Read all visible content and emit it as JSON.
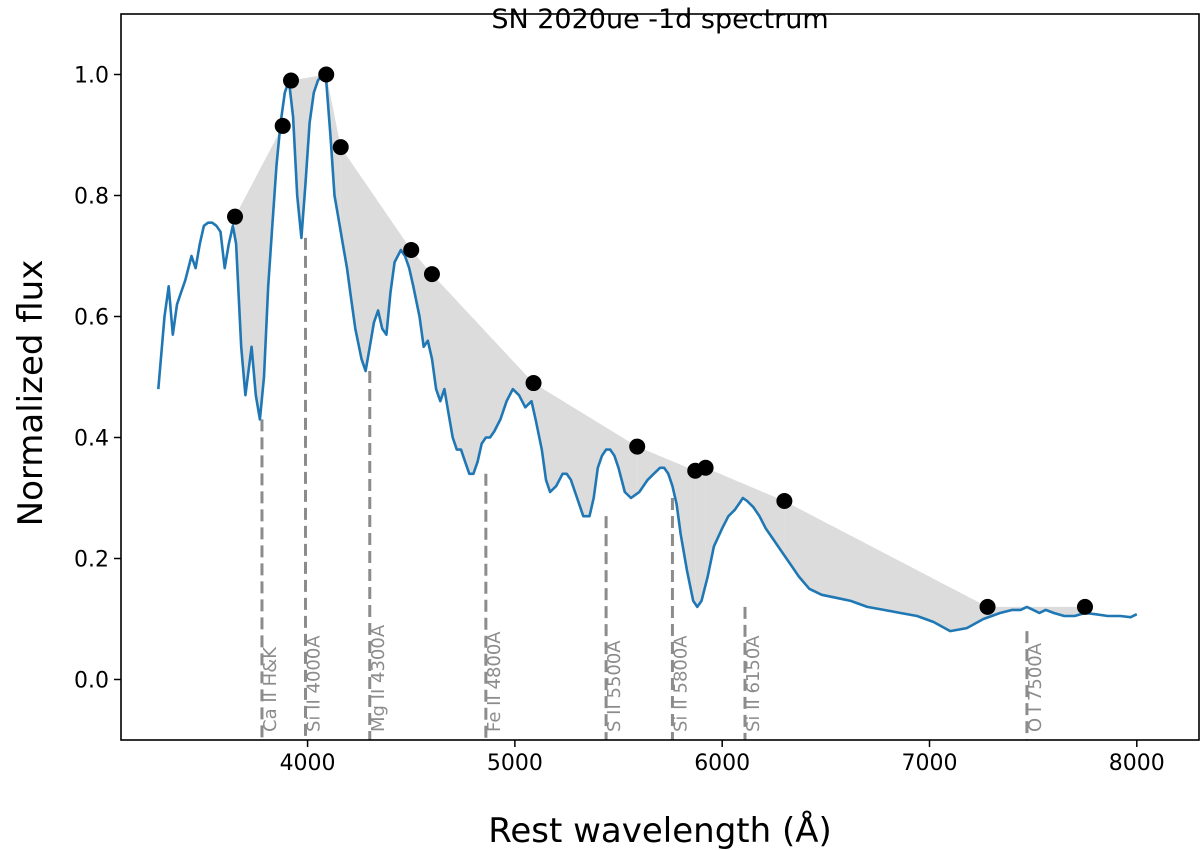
{
  "chart_data": {
    "type": "line",
    "title": "SN 2020ue -1d spectrum",
    "xlabel": "Rest wavelength (Å)",
    "ylabel": "Normalized flux",
    "xlim": [
      3100,
      8300
    ],
    "ylim": [
      -0.1,
      1.1
    ],
    "xticks": [
      4000,
      5000,
      6000,
      7000,
      8000
    ],
    "yticks": [
      0.0,
      0.2,
      0.4,
      0.6,
      0.8,
      1.0
    ],
    "ytick_labels": [
      "0.0",
      "0.2",
      "0.4",
      "0.6",
      "0.8",
      "1.0"
    ],
    "colors": {
      "spectrum": "#1f77b4",
      "fill": "#dcdcdc",
      "line_marker": "#8c8c8c",
      "points": "#000000"
    },
    "spectrum": {
      "name": "spectrum",
      "x": [
        3280,
        3310,
        3330,
        3350,
        3370,
        3390,
        3410,
        3440,
        3460,
        3480,
        3500,
        3520,
        3540,
        3560,
        3580,
        3600,
        3620,
        3640,
        3655,
        3680,
        3700,
        3730,
        3750,
        3770,
        3790,
        3810,
        3830,
        3850,
        3870,
        3890,
        3910,
        3930,
        3950,
        3970,
        3990,
        4010,
        4030,
        4050,
        4070,
        4090,
        4110,
        4130,
        4150,
        4170,
        4190,
        4210,
        4230,
        4260,
        4280,
        4300,
        4320,
        4340,
        4360,
        4380,
        4400,
        4420,
        4450,
        4470,
        4490,
        4510,
        4540,
        4560,
        4580,
        4600,
        4620,
        4640,
        4660,
        4680,
        4700,
        4720,
        4740,
        4760,
        4780,
        4800,
        4820,
        4840,
        4860,
        4880,
        4900,
        4930,
        4960,
        4990,
        5020,
        5050,
        5080,
        5100,
        5130,
        5150,
        5170,
        5200,
        5230,
        5250,
        5270,
        5300,
        5330,
        5360,
        5380,
        5400,
        5420,
        5440,
        5460,
        5480,
        5500,
        5530,
        5560,
        5600,
        5640,
        5670,
        5700,
        5720,
        5740,
        5760,
        5780,
        5800,
        5830,
        5860,
        5880,
        5900,
        5930,
        5960,
        6000,
        6030,
        6060,
        6080,
        6100,
        6120,
        6150,
        6180,
        6210,
        6250,
        6290,
        6330,
        6370,
        6420,
        6480,
        6550,
        6620,
        6700,
        6780,
        6860,
        6940,
        7020,
        7100,
        7180,
        7260,
        7340,
        7400,
        7440,
        7470,
        7500,
        7530,
        7560,
        7600,
        7650,
        7700,
        7750,
        7800,
        7860,
        7920,
        7970,
        8000
      ],
      "y": [
        0.48,
        0.6,
        0.65,
        0.57,
        0.62,
        0.64,
        0.66,
        0.7,
        0.68,
        0.72,
        0.75,
        0.755,
        0.755,
        0.75,
        0.74,
        0.68,
        0.72,
        0.75,
        0.72,
        0.55,
        0.47,
        0.55,
        0.47,
        0.43,
        0.5,
        0.65,
        0.75,
        0.85,
        0.92,
        0.97,
        0.99,
        0.93,
        0.8,
        0.73,
        0.82,
        0.92,
        0.97,
        0.99,
        1.0,
        0.99,
        0.9,
        0.8,
        0.76,
        0.72,
        0.68,
        0.63,
        0.58,
        0.53,
        0.51,
        0.55,
        0.59,
        0.61,
        0.58,
        0.57,
        0.64,
        0.69,
        0.71,
        0.7,
        0.68,
        0.65,
        0.6,
        0.55,
        0.56,
        0.53,
        0.48,
        0.46,
        0.48,
        0.44,
        0.4,
        0.38,
        0.38,
        0.36,
        0.34,
        0.34,
        0.36,
        0.39,
        0.4,
        0.4,
        0.41,
        0.43,
        0.46,
        0.48,
        0.47,
        0.45,
        0.46,
        0.43,
        0.38,
        0.33,
        0.31,
        0.32,
        0.34,
        0.34,
        0.33,
        0.3,
        0.27,
        0.27,
        0.3,
        0.35,
        0.37,
        0.38,
        0.38,
        0.37,
        0.35,
        0.31,
        0.3,
        0.31,
        0.33,
        0.34,
        0.35,
        0.35,
        0.34,
        0.32,
        0.29,
        0.24,
        0.18,
        0.13,
        0.12,
        0.13,
        0.17,
        0.22,
        0.25,
        0.27,
        0.28,
        0.29,
        0.3,
        0.295,
        0.285,
        0.27,
        0.25,
        0.23,
        0.21,
        0.19,
        0.17,
        0.15,
        0.14,
        0.135,
        0.13,
        0.12,
        0.115,
        0.11,
        0.105,
        0.095,
        0.08,
        0.085,
        0.1,
        0.11,
        0.115,
        0.115,
        0.12,
        0.115,
        0.11,
        0.115,
        0.11,
        0.105,
        0.105,
        0.11,
        0.108,
        0.105,
        0.105,
        0.103,
        0.108
      ]
    },
    "continuum_points": {
      "x": [
        3650,
        3880,
        3920,
        4090,
        4160,
        4500,
        4600,
        5090,
        5590,
        5870,
        5920,
        6300,
        7280,
        7750
      ],
      "y": [
        0.765,
        0.915,
        0.99,
        1.0,
        0.88,
        0.71,
        0.67,
        0.49,
        0.385,
        0.345,
        0.35,
        0.295,
        0.12,
        0.12
      ]
    },
    "line_markers": [
      {
        "label": "Ca II H&K",
        "x": 3780,
        "ymin": 0.43
      },
      {
        "label": "Si II 4000A",
        "x": 3990,
        "ymin": 0.73
      },
      {
        "label": "Mg II 4300A",
        "x": 4300,
        "ymin": 0.51
      },
      {
        "label": "Fe II 4800A",
        "x": 4860,
        "ymin": 0.34
      },
      {
        "label": "S II 5500A",
        "x": 5440,
        "ymin": 0.27
      },
      {
        "label": "Si II 5800A",
        "x": 5760,
        "ymin": 0.3
      },
      {
        "label": "Si II 6150A",
        "x": 6110,
        "ymin": 0.12
      },
      {
        "label": "O I 7500A",
        "x": 7470,
        "ymin": 0.08
      }
    ]
  }
}
